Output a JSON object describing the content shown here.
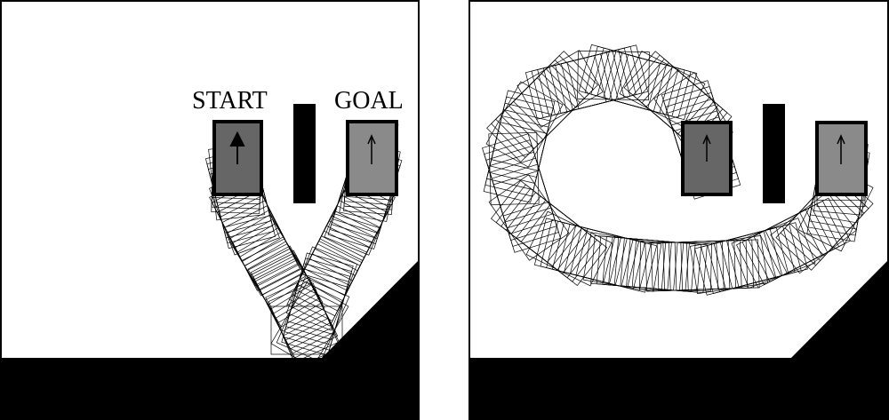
{
  "labels": {
    "start": "START",
    "goal": "GOAL"
  },
  "colors": {
    "background": "#ffffff",
    "obstacle": "#000000",
    "vehicle_fill": "#666666",
    "goal_fill": "#8a8a8a",
    "trace_stroke": "#000000"
  }
}
